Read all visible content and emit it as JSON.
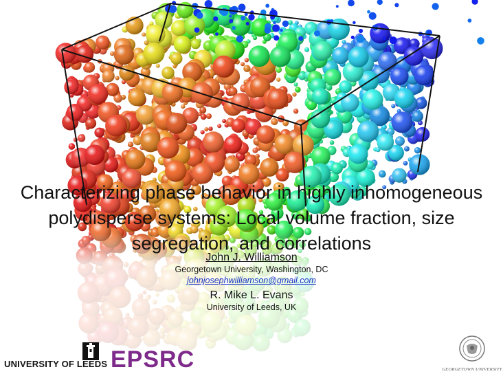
{
  "title_lines": [
    "Characterizing phase behavior in highly inhomogeneous",
    "polydisperse systems: Local volume fraction, size",
    "segregation, and correlations"
  ],
  "author1": {
    "name": "John J. Williamson",
    "affiliation": "Georgetown University, Washington, DC",
    "email": "johnjosephwilliamson@gmail.com"
  },
  "author2": {
    "name": "R. Mike L. Evans",
    "affiliation": "University of Leeds, UK"
  },
  "logos": {
    "leeds": "UNIVERSITY OF LEEDS",
    "epsrc": "EPSRC",
    "georgetown": "GEORGETOWN UNIVERSITY",
    "leeds_crest_icon": "tower-crest-icon",
    "georgetown_seal_icon": "university-seal-icon"
  },
  "colors": {
    "epsrc_purple": "#7e2a8a",
    "link_blue": "#1a33c8"
  }
}
